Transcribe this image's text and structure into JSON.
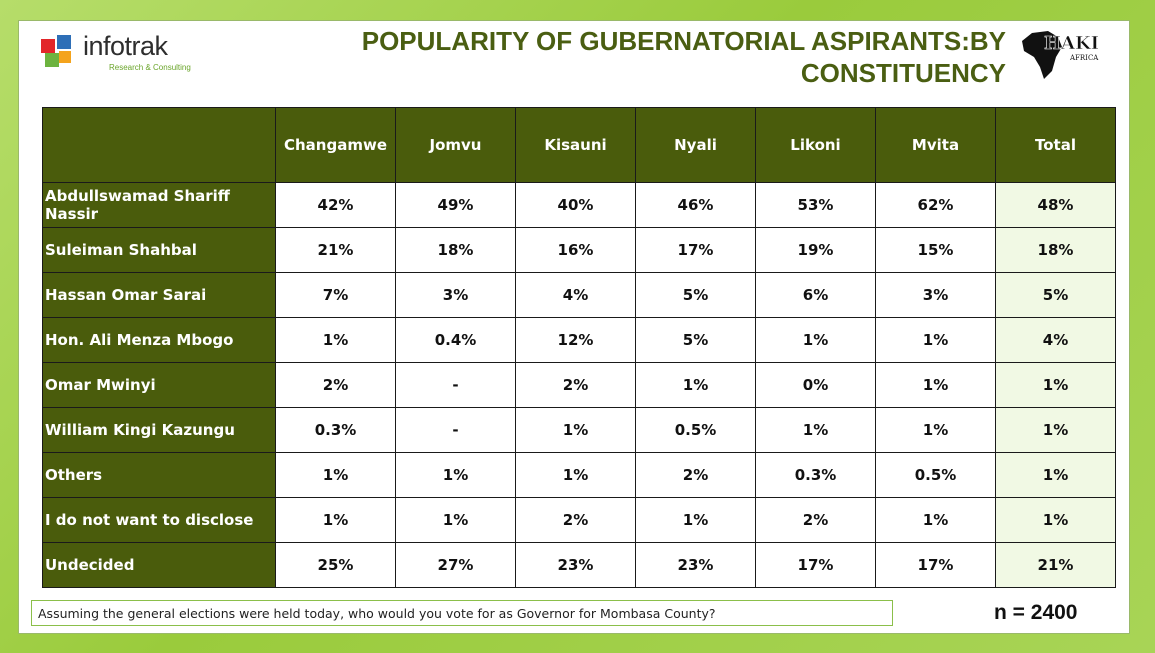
{
  "header": {
    "logo_text": "infotrak",
    "logo_subtext": "Research & Consulting",
    "title_line1": "POPULARITY OF GUBERNATORIAL ASPIRANTS:BY",
    "title_line2": "CONSTITUENCY",
    "partner_logo_text": "HAKI",
    "partner_logo_subtext": "AFRICA"
  },
  "table": {
    "columns": [
      "Changamwe",
      "Jomvu",
      "Kisauni",
      "Nyali",
      "Likoni",
      "Mvita",
      "Total"
    ],
    "rows": [
      {
        "label": "Abdullswamad Shariff Nassir",
        "values": [
          "42%",
          "49%",
          "40%",
          "46%",
          "53%",
          "62%",
          "48%"
        ]
      },
      {
        "label": "Suleiman Shahbal",
        "values": [
          "21%",
          "18%",
          "16%",
          "17%",
          "19%",
          "15%",
          "18%"
        ]
      },
      {
        "label": "Hassan Omar Sarai",
        "values": [
          "7%",
          "3%",
          "4%",
          "5%",
          "6%",
          "3%",
          "5%"
        ]
      },
      {
        "label": "Hon. Ali Menza Mbogo",
        "values": [
          "1%",
          "0.4%",
          "12%",
          "5%",
          "1%",
          "1%",
          "4%"
        ]
      },
      {
        "label": "Omar Mwinyi",
        "values": [
          "2%",
          "-",
          "2%",
          "1%",
          "0%",
          "1%",
          "1%"
        ]
      },
      {
        "label": "William Kingi Kazungu",
        "values": [
          "0.3%",
          "-",
          "1%",
          "0.5%",
          "1%",
          "1%",
          "1%"
        ]
      },
      {
        "label": "Others",
        "values": [
          "1%",
          "1%",
          "1%",
          "2%",
          "0.3%",
          "0.5%",
          "1%"
        ]
      },
      {
        "label": "I do not want to disclose",
        "values": [
          "1%",
          "1%",
          "2%",
          "1%",
          "2%",
          "1%",
          "1%"
        ]
      },
      {
        "label": "Undecided",
        "values": [
          "25%",
          "27%",
          "23%",
          "23%",
          "17%",
          "17%",
          "21%"
        ]
      }
    ]
  },
  "footer": {
    "question": "Assuming the general elections were held today, who would you vote for as Governor for Mombasa County?",
    "sample_size": "n = 2400"
  },
  "colors": {
    "header_fill": "#4a5c0c",
    "title_color": "#4a5e12",
    "total_column_fill": "#f1f9e4",
    "background_green": "#9acb3c"
  }
}
